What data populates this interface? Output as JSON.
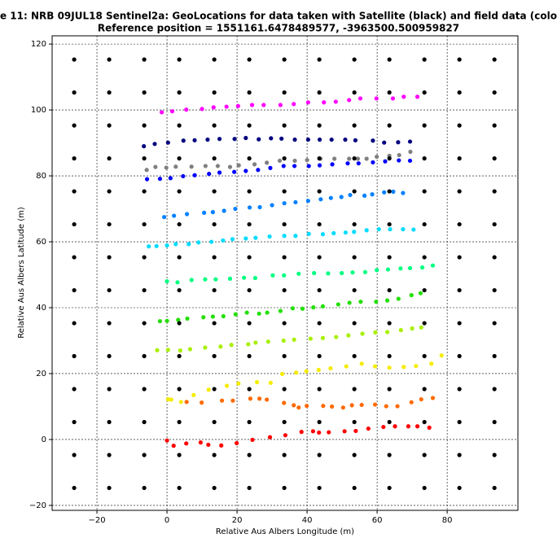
{
  "chart_data": {
    "type": "scatter",
    "title": "e 11: NRB 09JUL18  Sentinel2a: GeoLocations for data taken with Satellite (black) and field data (colo",
    "subtitle": "Reference position = 1551161.6478489577, -3963500.500959827",
    "x_label": "Relative Aus Albers Longitude (m)",
    "y_label": "Relative Aus Albers Latitude (m)",
    "xlim": [
      -32.8,
      100.2
    ],
    "ylim": [
      -21.5,
      122.5
    ],
    "xticks": [
      {
        "value": -20,
        "label": "−20"
      },
      0,
      20,
      40,
      60,
      80
    ],
    "yticks": [
      {
        "value": -20,
        "label": "−20"
      },
      0,
      20,
      40,
      60,
      80,
      100,
      120
    ],
    "grid": true,
    "series": [
      {
        "color": "#ff00ff",
        "x": [
          -1.5,
          1.5,
          5.5,
          10,
          13.3,
          17,
          20.3,
          24.3,
          27.6,
          32.4,
          36.2,
          40.3,
          44.8,
          48.2,
          52,
          55.2,
          59.8,
          64.5,
          67.6,
          71.5
        ],
        "y": [
          99.3,
          99.6,
          100.1,
          100.3,
          100.8,
          101,
          101.2,
          101.5,
          101.5,
          101.5,
          101.8,
          102.3,
          102.3,
          102.5,
          103,
          103.5,
          103.5,
          103.5,
          104,
          104
        ]
      },
      {
        "color": "#000080",
        "x": [
          -6.6,
          -3.5,
          0.3,
          4.7,
          7.9,
          11.6,
          15,
          19.3,
          22.5,
          26.2,
          29.7,
          32.7,
          36.5,
          40.3,
          43.6,
          47,
          50.9,
          53.8,
          58.8,
          62,
          66,
          69.4
        ],
        "y": [
          89,
          89.7,
          90.1,
          90.7,
          90.8,
          91,
          91.2,
          91.2,
          91.5,
          91.1,
          91.4,
          91.3,
          91,
          91,
          91,
          91,
          91,
          90.8,
          90.7,
          90.1,
          90.2,
          90.4
        ]
      },
      {
        "color": "#808080",
        "x": [
          -5.8,
          -3.3,
          -0.2,
          2.5,
          7,
          11,
          14.5,
          18,
          20.5,
          25,
          28.5,
          32.2,
          36.5,
          40,
          43.8,
          47.8,
          52,
          54.5,
          57,
          59.9,
          63.5,
          66.3,
          69.5
        ],
        "y": [
          81.8,
          82.7,
          82.5,
          82.8,
          82.8,
          83,
          83,
          82.7,
          83.2,
          83.5,
          84,
          84.6,
          84.6,
          84.8,
          85.2,
          85.2,
          85.2,
          85.2,
          85.2,
          85.8,
          86.1,
          86.3,
          87.3
        ]
      },
      {
        "color": "#0000ff",
        "x": [
          -5.7,
          -2,
          1,
          4.6,
          7.9,
          12,
          15,
          19.2,
          22.5,
          26,
          29.5,
          33.3,
          36.4,
          40.5,
          43.6,
          47.2,
          51.6,
          54.7,
          58.8,
          62.3,
          66.2,
          69.4
        ],
        "y": [
          79,
          79.1,
          79.3,
          79.9,
          80.2,
          80.6,
          81,
          81.2,
          81.5,
          81.8,
          82.4,
          83,
          83,
          83,
          83.2,
          83.5,
          83.8,
          83.8,
          84.1,
          84.4,
          84.7,
          84.6
        ]
      },
      {
        "color": "#0080ff",
        "x": [
          -0.8,
          2,
          5.7,
          10.6,
          13.1,
          16.3,
          19.5,
          23.6,
          26.5,
          30,
          33.5,
          36.7,
          40.3,
          43.9,
          46.8,
          49.8,
          52.3,
          56.4,
          58.6,
          62,
          64.6,
          67.4
        ],
        "y": [
          67.5,
          67.9,
          68.4,
          68.8,
          69,
          69.4,
          70,
          70.4,
          70.5,
          71.1,
          71.7,
          72,
          72.4,
          72.9,
          73.3,
          73.6,
          74.2,
          74,
          74.4,
          75,
          75.2,
          74.8
        ]
      },
      {
        "color": "#00dcff",
        "x": [
          -5.2,
          -3,
          0,
          2.5,
          6.2,
          9,
          12.7,
          16,
          18.7,
          22.5,
          25.3,
          29.3,
          33.5,
          36.7,
          40.5,
          44.5,
          47.6,
          51,
          53.4,
          57,
          60.5,
          63.7,
          67.4,
          70.4
        ],
        "y": [
          58.6,
          58.7,
          58.9,
          59.3,
          59.3,
          59.8,
          60,
          60.4,
          60.8,
          61,
          61.2,
          61.6,
          61.8,
          61.8,
          62.4,
          62.3,
          62.6,
          62.8,
          63,
          63.5,
          63.8,
          63.8,
          63.8,
          63.7
        ]
      },
      {
        "color": "#00ff80",
        "x": [
          0,
          3,
          7,
          10.9,
          13.9,
          18,
          22,
          25.2,
          30.2,
          33.4,
          37.6,
          42,
          46,
          49.9,
          53,
          56.6,
          59.9,
          63.1,
          66.7,
          69.4,
          72.9,
          75.9
        ],
        "y": [
          48,
          47.7,
          48.4,
          48.6,
          48.6,
          48.8,
          49.1,
          49,
          49.8,
          49.8,
          50.3,
          50.5,
          50.4,
          50.5,
          50.7,
          50.8,
          51.4,
          51.6,
          51.9,
          52,
          52.2,
          52.8
        ]
      },
      {
        "color": "#22e000",
        "x": [
          -2,
          0,
          3.2,
          5.8,
          10.4,
          13.1,
          16.1,
          19.6,
          22.8,
          26.3,
          28.6,
          32.4,
          35.9,
          38.7,
          41.8,
          44.5,
          48.9,
          52.1,
          55.3,
          59.7,
          62.9,
          66.1,
          69.8,
          72.4
        ],
        "y": [
          35.9,
          36,
          36.3,
          36.7,
          37.1,
          37.3,
          37.4,
          38,
          38.5,
          38.2,
          38.5,
          39,
          39.8,
          39.7,
          40.1,
          40.4,
          41,
          41.5,
          41.8,
          41.8,
          42.2,
          42.7,
          43.8,
          44.4
        ]
      },
      {
        "color": "#a8f000",
        "x": [
          -2.8,
          0.3,
          3.8,
          6.6,
          10.9,
          15.3,
          18.4,
          23.2,
          25.3,
          28.9,
          33.3,
          36.3,
          41,
          44.5,
          48.3,
          51.8,
          55.8,
          59.5,
          62.9,
          66.8,
          70,
          72.6
        ],
        "y": [
          27.1,
          27.2,
          27,
          27.4,
          27.9,
          28.2,
          28.7,
          28.9,
          29.4,
          29.7,
          30,
          30.3,
          30.6,
          30.8,
          31.1,
          31.6,
          32.1,
          32.5,
          32.6,
          33.2,
          33.7,
          34
        ]
      },
      {
        "color": "#f5ec00",
        "x": [
          0.3,
          1.2,
          4,
          7.6,
          11.9,
          17.1,
          20.4,
          25.7,
          29.6,
          32.9,
          36.9,
          39.8,
          43.3,
          46.7,
          51.2,
          55.6,
          59.4,
          63.5,
          67.6,
          71.1,
          75.5,
          78.4
        ],
        "y": [
          12.2,
          12.1,
          11.4,
          13.5,
          15.1,
          16.3,
          17,
          17.4,
          17.2,
          19.9,
          20.3,
          20.7,
          21.1,
          21.6,
          22.2,
          23,
          22.2,
          21.8,
          22,
          22.3,
          23,
          25.5
        ]
      },
      {
        "color": "#ff6a00",
        "x": [
          5.6,
          9.9,
          15.7,
          18.8,
          23.8,
          26.4,
          28.5,
          33.4,
          36.2,
          37.6,
          39.9,
          44.6,
          47.1,
          50.3,
          52.8,
          55.6,
          59.4,
          62.6,
          65.8,
          69.8,
          72.6,
          75.9
        ],
        "y": [
          11.4,
          11.2,
          11.8,
          11.8,
          12.4,
          12.4,
          12.1,
          11.1,
          10.4,
          9.7,
          10.2,
          10.2,
          10,
          9.7,
          10.4,
          10.5,
          10.6,
          10.1,
          10.1,
          11.3,
          12.2,
          12.6
        ]
      },
      {
        "color": "#ff0000",
        "x": [
          0,
          1.9,
          5.5,
          9.6,
          11.8,
          15.5,
          19.9,
          24.4,
          29.4,
          33.8,
          38.4,
          41.7,
          43.4,
          46.2,
          50.7,
          53.9,
          57.5,
          61.8,
          65.1,
          68.9,
          71.5,
          74.9
        ],
        "y": [
          -0.3,
          -1.9,
          -1.2,
          -0.9,
          -1.6,
          -1.8,
          -1.1,
          -0.1,
          0.7,
          1.3,
          2.3,
          2.5,
          2.1,
          2.2,
          2.5,
          2.6,
          3.3,
          3.8,
          4,
          4,
          4,
          3.6
        ]
      },
      {
        "color": "#000000",
        "x": [
          -26.5,
          -16.5,
          -6.5,
          3.5,
          13.5,
          23.5,
          33.5,
          43.5,
          53.5,
          63.5,
          73.5,
          83.5,
          93.5,
          -26.5,
          -16.5,
          -6.5,
          3.5,
          13.5,
          23.5,
          33.5,
          43.5,
          53.5,
          63.5,
          73.5,
          83.5,
          93.5,
          -26.5,
          -16.5,
          -6.5,
          3.5,
          13.5,
          23.5,
          33.5,
          43.5,
          53.5,
          63.5,
          73.5,
          83.5,
          93.5,
          -26.5,
          -16.5,
          -6.5,
          3.5,
          13.5,
          23.5,
          33.5,
          43.5,
          53.5,
          63.5,
          73.5,
          83.5,
          93.5,
          -26.5,
          -16.5,
          -6.5,
          3.5,
          13.5,
          23.5,
          33.5,
          43.5,
          53.5,
          63.5,
          73.5,
          83.5,
          93.5,
          -26.5,
          -16.5,
          -6.5,
          3.5,
          13.5,
          23.5,
          33.5,
          43.5,
          53.5,
          63.5,
          73.5,
          83.5,
          93.5,
          -26.5,
          -16.5,
          -6.5,
          3.5,
          13.5,
          23.5,
          33.5,
          43.5,
          53.5,
          63.5,
          73.5,
          83.5,
          93.5,
          -26.5,
          -16.5,
          -6.5,
          3.5,
          13.5,
          23.5,
          33.5,
          43.5,
          53.5,
          63.5,
          73.5,
          83.5,
          93.5,
          -26.5,
          -16.5,
          -6.5,
          3.5,
          13.5,
          23.5,
          33.5,
          43.5,
          53.5,
          63.5,
          73.5,
          83.5,
          93.5,
          -26.5,
          -16.5,
          -6.5,
          3.5,
          13.5,
          23.5,
          33.5,
          43.5,
          53.5,
          63.5,
          73.5,
          83.5,
          93.5,
          -26.5,
          -16.5,
          -6.5,
          3.5,
          13.5,
          23.5,
          33.5,
          43.5,
          53.5,
          63.5,
          73.5,
          83.5,
          93.5,
          -26.5,
          -16.5,
          -6.5,
          3.5,
          13.5,
          23.5,
          33.5,
          43.5,
          53.5,
          63.5,
          73.5,
          83.5,
          93.5,
          -26.5,
          -16.5,
          -6.5,
          3.5,
          13.5,
          23.5,
          33.5,
          43.5,
          53.5,
          63.5,
          73.5,
          83.5,
          93.5,
          -26.5,
          -16.5,
          -6.5,
          3.5,
          13.5,
          23.5,
          33.5,
          43.5,
          53.5,
          63.5,
          73.5,
          83.5,
          93.5
        ],
        "y": [
          115.3,
          115.3,
          115.3,
          115.3,
          115.3,
          115.3,
          115.3,
          115.3,
          115.3,
          115.3,
          115.3,
          115.3,
          115.3,
          105.3,
          105.3,
          105.3,
          105.3,
          105.3,
          105.3,
          105.3,
          105.3,
          105.3,
          105.3,
          105.3,
          105.3,
          105.3,
          95.3,
          95.3,
          95.3,
          95.3,
          95.3,
          95.3,
          95.3,
          95.3,
          95.3,
          95.3,
          95.3,
          95.3,
          95.3,
          85.3,
          85.3,
          85.3,
          85.3,
          85.3,
          85.3,
          85.3,
          85.3,
          85.3,
          85.3,
          85.3,
          85.3,
          85.3,
          75.3,
          75.3,
          75.3,
          75.3,
          75.3,
          75.3,
          75.3,
          75.3,
          75.3,
          75.3,
          75.3,
          75.3,
          75.3,
          65.3,
          65.3,
          65.3,
          65.3,
          65.3,
          65.3,
          65.3,
          65.3,
          65.3,
          65.3,
          65.3,
          65.3,
          65.3,
          55.3,
          55.3,
          55.3,
          55.3,
          55.3,
          55.3,
          55.3,
          55.3,
          55.3,
          55.3,
          55.3,
          55.3,
          55.3,
          45.3,
          45.3,
          45.3,
          45.3,
          45.3,
          45.3,
          45.3,
          45.3,
          45.3,
          45.3,
          45.3,
          45.3,
          45.3,
          35.3,
          35.3,
          35.3,
          35.3,
          35.3,
          35.3,
          35.3,
          35.3,
          35.3,
          35.3,
          35.3,
          35.3,
          35.3,
          25.3,
          25.3,
          25.3,
          25.3,
          25.3,
          25.3,
          25.3,
          25.3,
          25.3,
          25.3,
          25.3,
          25.3,
          25.3,
          15.3,
          15.3,
          15.3,
          15.3,
          15.3,
          15.3,
          15.3,
          15.3,
          15.3,
          15.3,
          15.3,
          15.3,
          15.3,
          5.3,
          5.3,
          5.3,
          5.3,
          5.3,
          5.3,
          5.3,
          5.3,
          5.3,
          5.3,
          5.3,
          5.3,
          5.3,
          -4.7,
          -4.7,
          -4.7,
          -4.7,
          -4.7,
          -4.7,
          -4.7,
          -4.7,
          -4.7,
          -4.7,
          -4.7,
          -4.7,
          -4.7,
          -14.7,
          -14.7,
          -14.7,
          -14.7,
          -14.7,
          -14.7,
          -14.7,
          -14.7,
          -14.7,
          -14.7,
          -14.7,
          -14.7,
          -14.7
        ]
      }
    ]
  }
}
